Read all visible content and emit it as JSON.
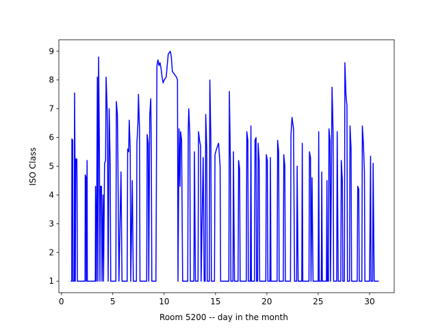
{
  "chart_data": {
    "type": "line",
    "xlabel": "Room 5200 -- day in the month",
    "ylabel": "ISO Class",
    "color": "#0000ff",
    "grid": false,
    "xlim": [
      -0.25,
      32.4
    ],
    "ylim": [
      0.6,
      9.4
    ],
    "xticks": [
      0,
      5,
      10,
      15,
      20,
      25,
      30
    ],
    "yticks": [
      1,
      2,
      3,
      4,
      5,
      6,
      7,
      8,
      9
    ],
    "x": [
      0.9,
      1.0,
      1.02,
      1.1,
      1.12,
      1.25,
      1.28,
      1.32,
      1.35,
      1.4,
      1.5,
      1.52,
      1.55,
      2.3,
      2.32,
      2.4,
      2.42,
      2.5,
      2.52,
      3.3,
      3.32,
      3.4,
      3.5,
      3.55,
      3.62,
      3.7,
      3.75,
      3.8,
      3.9,
      3.95,
      4.05,
      4.1,
      4.2,
      4.3,
      4.35,
      4.45,
      4.5,
      4.55,
      4.65,
      4.75,
      4.8,
      5.3,
      5.35,
      5.45,
      5.5,
      5.6,
      5.8,
      5.9,
      6.4,
      6.45,
      6.55,
      6.6,
      6.7,
      6.75,
      6.9,
      7.0,
      7.3,
      7.35,
      7.45,
      7.5,
      7.6,
      7.65,
      8.3,
      8.35,
      8.45,
      8.5,
      8.6,
      8.7,
      8.75,
      8.8,
      9.2,
      9.3,
      9.4,
      9.5,
      9.6,
      9.7,
      9.8,
      9.9,
      10.0,
      10.2,
      10.4,
      10.6,
      10.7,
      10.8,
      11.0,
      11.2,
      11.3,
      11.35,
      11.45,
      11.55,
      11.6,
      11.7,
      11.8,
      12.3,
      12.35,
      12.4,
      12.5,
      12.55,
      12.9,
      12.95,
      13.05,
      13.3,
      13.35,
      13.45,
      13.55,
      13.6,
      13.8,
      13.9,
      14.0,
      14.05,
      14.15,
      14.2,
      14.4,
      14.45,
      14.55,
      14.6,
      14.9,
      14.95,
      15.1,
      15.3,
      15.45,
      15.5,
      16.3,
      16.35,
      16.45,
      16.5,
      16.7,
      16.75,
      16.85,
      17.2,
      17.25,
      17.35,
      17.4,
      18.0,
      18.05,
      18.15,
      18.2,
      18.4,
      18.45,
      18.5,
      18.8,
      18.85,
      18.95,
      19.0,
      19.1,
      19.15,
      19.25,
      19.3,
      19.9,
      19.95,
      20.05,
      20.1,
      20.3,
      20.35,
      20.4,
      21.0,
      21.05,
      21.15,
      21.2,
      21.6,
      21.65,
      21.75,
      21.8,
      22.3,
      22.35,
      22.45,
      22.6,
      22.7,
      22.9,
      22.95,
      23.05,
      23.4,
      23.45,
      23.5,
      24.1,
      24.15,
      24.25,
      24.3,
      24.4,
      24.5,
      25.0,
      25.05,
      25.1,
      25.3,
      25.35,
      25.4,
      25.8,
      25.85,
      25.9,
      26.0,
      26.05,
      26.15,
      26.2,
      26.35,
      26.45,
      26.5,
      26.8,
      26.85,
      26.95,
      27.2,
      27.25,
      27.35,
      27.4,
      27.55,
      27.6,
      27.7,
      27.8,
      27.85,
      28.05,
      28.1,
      28.2,
      28.25,
      28.8,
      28.85,
      28.95,
      29.0,
      29.25,
      29.3,
      29.4,
      29.5,
      29.55,
      30.0,
      30.1,
      30.15,
      30.3,
      30.35,
      30.45,
      30.9
    ],
    "values": [
      1,
      1,
      5.95,
      5.9,
      1,
      1,
      7.55,
      5.2,
      1,
      5.25,
      5.25,
      4.3,
      1,
      1,
      4.7,
      4.6,
      1,
      5.2,
      1,
      1,
      4.3,
      1,
      8.1,
      1,
      8.8,
      5.5,
      1,
      4.3,
      4.3,
      1,
      4,
      1,
      5.1,
      5.2,
      8.1,
      7,
      5.2,
      1,
      7,
      5,
      1,
      1,
      7.25,
      6.8,
      5.2,
      1,
      4.8,
      1,
      1,
      5.6,
      5.5,
      6.6,
      5.6,
      1,
      4.5,
      1,
      1,
      5.8,
      6.5,
      7.5,
      6.3,
      1,
      1,
      6.1,
      5.8,
      1,
      6.8,
      7.35,
      5.6,
      1,
      1,
      8.5,
      8.7,
      8.5,
      8.6,
      8.4,
      8.1,
      7.9,
      8.0,
      8.1,
      8.9,
      9.0,
      8.8,
      8.3,
      8.2,
      8.1,
      8.0,
      1,
      6.3,
      4.3,
      6.2,
      5.9,
      1,
      1,
      6.3,
      7.0,
      6.1,
      1,
      1,
      5.5,
      1,
      1,
      6.2,
      5.9,
      5.7,
      1,
      5.3,
      1,
      1,
      6.8,
      5.6,
      1,
      1,
      8.0,
      5.9,
      1,
      1,
      5.4,
      5.6,
      5.8,
      5.0,
      1,
      1,
      7.6,
      5.2,
      1,
      1,
      5.5,
      1,
      1,
      5.2,
      4.9,
      1,
      1,
      6.2,
      5.9,
      1,
      1,
      6.4,
      1,
      1,
      5.9,
      6.0,
      1,
      1,
      5.8,
      5.2,
      1,
      1,
      5.4,
      5.2,
      1,
      1,
      5.3,
      1,
      1,
      5.9,
      5.5,
      1,
      1,
      5.4,
      5.0,
      1,
      1,
      6.1,
      6.7,
      6.3,
      1,
      1,
      5.0,
      1,
      1,
      5.8,
      1,
      1,
      5.5,
      5.3,
      1,
      4.6,
      1,
      1,
      6.2,
      1,
      1,
      4.8,
      1,
      1,
      4.5,
      1,
      1,
      6.3,
      5.9,
      1,
      7.75,
      6.2,
      1,
      1,
      6.2,
      1,
      1,
      5.2,
      4.5,
      1,
      1,
      8.6,
      7.5,
      7.1,
      1,
      1,
      6.4,
      5.6,
      1,
      1,
      4.3,
      4.2,
      1,
      1,
      6.4,
      5.8,
      4.8,
      1,
      1,
      5.35,
      1,
      1,
      5.1,
      1,
      1
    ]
  }
}
